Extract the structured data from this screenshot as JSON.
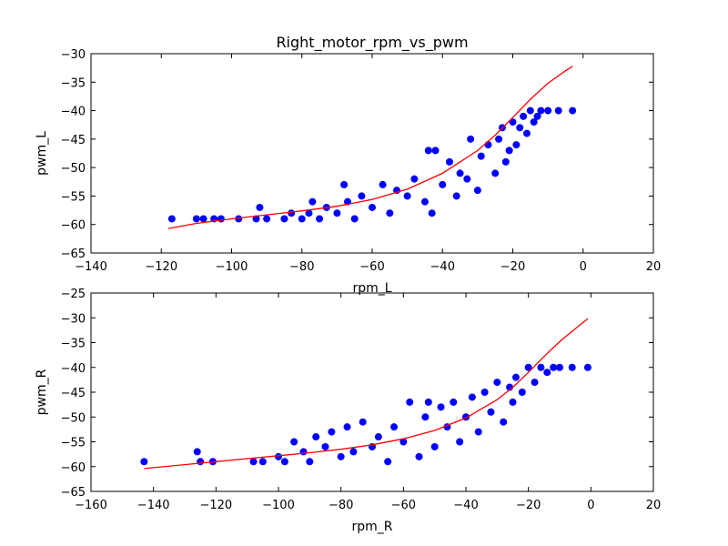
{
  "chart_data": [
    {
      "type": "scatter",
      "title": "Right_motor_rpm_vs_pwm",
      "xlabel": "rpm_L",
      "ylabel": "pwm_L",
      "xlim": [
        -140,
        20
      ],
      "ylim": [
        -65,
        -30
      ],
      "xticks": [
        -140,
        -120,
        -100,
        -80,
        -60,
        -40,
        -20,
        0,
        20
      ],
      "yticks": [
        -65,
        -60,
        -55,
        -50,
        -45,
        -40,
        -35,
        -30
      ],
      "grid": false,
      "colors": {
        "points": "#0000ff",
        "fit": "#ff0000"
      },
      "series": [
        {
          "kind": "points",
          "points": [
            [
              -117,
              -59
            ],
            [
              -110,
              -59
            ],
            [
              -108,
              -59
            ],
            [
              -105,
              -59
            ],
            [
              -103,
              -59
            ],
            [
              -98,
              -59
            ],
            [
              -93,
              -59
            ],
            [
              -92,
              -57
            ],
            [
              -90,
              -59
            ],
            [
              -85,
              -59
            ],
            [
              -83,
              -58
            ],
            [
              -80,
              -59
            ],
            [
              -78,
              -58
            ],
            [
              -77,
              -56
            ],
            [
              -75,
              -59
            ],
            [
              -73,
              -57
            ],
            [
              -70,
              -58
            ],
            [
              -68,
              -53
            ],
            [
              -67,
              -56
            ],
            [
              -65,
              -59
            ],
            [
              -63,
              -55
            ],
            [
              -60,
              -57
            ],
            [
              -57,
              -53
            ],
            [
              -55,
              -58
            ],
            [
              -53,
              -54
            ],
            [
              -50,
              -55
            ],
            [
              -48,
              -52
            ],
            [
              -45,
              -56
            ],
            [
              -44,
              -47
            ],
            [
              -43,
              -58
            ],
            [
              -42,
              -47
            ],
            [
              -40,
              -53
            ],
            [
              -38,
              -49
            ],
            [
              -36,
              -55
            ],
            [
              -35,
              -51
            ],
            [
              -33,
              -52
            ],
            [
              -32,
              -45
            ],
            [
              -30,
              -54
            ],
            [
              -29,
              -48
            ],
            [
              -27,
              -46
            ],
            [
              -25,
              -51
            ],
            [
              -24,
              -45
            ],
            [
              -23,
              -43
            ],
            [
              -22,
              -49
            ],
            [
              -21,
              -47
            ],
            [
              -20,
              -42
            ],
            [
              -19,
              -46
            ],
            [
              -18,
              -43
            ],
            [
              -17,
              -41
            ],
            [
              -16,
              -44
            ],
            [
              -15,
              -40
            ],
            [
              -14,
              -42
            ],
            [
              -13,
              -41
            ],
            [
              -12,
              -40
            ],
            [
              -10,
              -40
            ],
            [
              -7,
              -40
            ],
            [
              -3,
              -40
            ]
          ]
        },
        {
          "kind": "fit",
          "points": [
            [
              -118,
              -60.7
            ],
            [
              -110,
              -59.8
            ],
            [
              -100,
              -59.0
            ],
            [
              -90,
              -58.3
            ],
            [
              -80,
              -57.6
            ],
            [
              -70,
              -56.8
            ],
            [
              -60,
              -55.6
            ],
            [
              -50,
              -53.8
            ],
            [
              -40,
              -51.0
            ],
            [
              -30,
              -47.0
            ],
            [
              -25,
              -44.3
            ],
            [
              -20,
              -41.2
            ],
            [
              -15,
              -38.0
            ],
            [
              -10,
              -35.2
            ],
            [
              -5,
              -33.0
            ],
            [
              -3,
              -32.2
            ]
          ]
        }
      ]
    },
    {
      "type": "scatter",
      "title": "",
      "xlabel": "rpm_R",
      "ylabel": "pwm_R",
      "xlim": [
        -160,
        20
      ],
      "ylim": [
        -65,
        -25
      ],
      "xticks": [
        -160,
        -140,
        -120,
        -100,
        -80,
        -60,
        -40,
        -20,
        0,
        20
      ],
      "yticks": [
        -65,
        -60,
        -55,
        -50,
        -45,
        -40,
        -35,
        -30,
        -25
      ],
      "grid": false,
      "colors": {
        "points": "#0000ff",
        "fit": "#ff0000"
      },
      "series": [
        {
          "kind": "points",
          "points": [
            [
              -143,
              -59
            ],
            [
              -126,
              -57
            ],
            [
              -125,
              -59
            ],
            [
              -121,
              -59
            ],
            [
              -108,
              -59
            ],
            [
              -105,
              -59
            ],
            [
              -100,
              -58
            ],
            [
              -98,
              -59
            ],
            [
              -95,
              -55
            ],
            [
              -92,
              -57
            ],
            [
              -90,
              -59
            ],
            [
              -88,
              -54
            ],
            [
              -85,
              -56
            ],
            [
              -83,
              -53
            ],
            [
              -80,
              -58
            ],
            [
              -78,
              -52
            ],
            [
              -76,
              -57
            ],
            [
              -73,
              -51
            ],
            [
              -70,
              -56
            ],
            [
              -68,
              -54
            ],
            [
              -65,
              -59
            ],
            [
              -63,
              -52
            ],
            [
              -60,
              -55
            ],
            [
              -58,
              -47
            ],
            [
              -55,
              -58
            ],
            [
              -53,
              -50
            ],
            [
              -52,
              -47
            ],
            [
              -50,
              -56
            ],
            [
              -48,
              -48
            ],
            [
              -46,
              -52
            ],
            [
              -44,
              -47
            ],
            [
              -42,
              -55
            ],
            [
              -40,
              -50
            ],
            [
              -38,
              -46
            ],
            [
              -36,
              -53
            ],
            [
              -34,
              -45
            ],
            [
              -32,
              -49
            ],
            [
              -30,
              -43
            ],
            [
              -28,
              -51
            ],
            [
              -26,
              -44
            ],
            [
              -25,
              -47
            ],
            [
              -24,
              -42
            ],
            [
              -22,
              -45
            ],
            [
              -20,
              -40
            ],
            [
              -18,
              -43
            ],
            [
              -16,
              -40
            ],
            [
              -14,
              -41
            ],
            [
              -12,
              -40
            ],
            [
              -10,
              -40
            ],
            [
              -6,
              -40
            ],
            [
              -1,
              -40
            ]
          ]
        },
        {
          "kind": "fit",
          "points": [
            [
              -143,
              -60.4
            ],
            [
              -130,
              -59.6
            ],
            [
              -120,
              -59.0
            ],
            [
              -110,
              -58.4
            ],
            [
              -100,
              -57.8
            ],
            [
              -90,
              -57.2
            ],
            [
              -80,
              -56.5
            ],
            [
              -70,
              -55.6
            ],
            [
              -60,
              -54.4
            ],
            [
              -50,
              -52.7
            ],
            [
              -40,
              -50.2
            ],
            [
              -30,
              -46.5
            ],
            [
              -25,
              -44.0
            ],
            [
              -20,
              -41.0
            ],
            [
              -15,
              -37.8
            ],
            [
              -10,
              -34.8
            ],
            [
              -5,
              -32.2
            ],
            [
              -1,
              -30.2
            ]
          ]
        }
      ]
    }
  ]
}
